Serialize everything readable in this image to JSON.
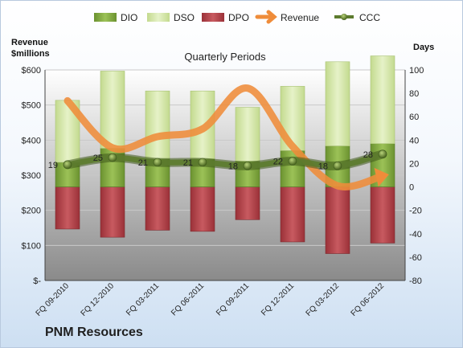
{
  "chart_data": {
    "type": "combo",
    "title": "Quarterly Periods",
    "company": "PNM Resources",
    "left_axis_label_line1": "Revenue",
    "left_axis_label_line2": "$millions",
    "right_axis_label": "Days",
    "left_axis": {
      "min": 0,
      "max": 600,
      "step": 100,
      "ticks": [
        "$-",
        "$100",
        "$200",
        "$300",
        "$400",
        "$500",
        "$600"
      ]
    },
    "right_axis": {
      "min": -80,
      "max": 100,
      "step": 20,
      "ticks": [
        "-80",
        "-60",
        "-40",
        "-20",
        "0",
        "20",
        "40",
        "60",
        "80",
        "100"
      ]
    },
    "categories": [
      "FQ 09-2010",
      "FQ 12-2010",
      "FQ 03-2011",
      "FQ 06-2011",
      "FQ 09-2011",
      "FQ 12-2011",
      "FQ 03-2012",
      "FQ 06-2012"
    ],
    "legend": [
      "DIO",
      "DSO",
      "DPO",
      "Revenue",
      "CCC"
    ],
    "series": [
      {
        "name": "DIO",
        "axis": "right",
        "values": [
          21,
          33,
          24,
          24,
          22,
          31,
          35,
          37
        ]
      },
      {
        "name": "DSO",
        "axis": "right",
        "values": [
          53,
          66,
          58,
          58,
          46,
          55,
          72,
          75
        ]
      },
      {
        "name": "DPO",
        "axis": "right",
        "values": [
          -36,
          -43,
          -37,
          -38,
          -28,
          -47,
          -57,
          -48
        ]
      },
      {
        "name": "Revenue",
        "axis": "left",
        "values": [
          512,
          378,
          410,
          432,
          548,
          382,
          270,
          298
        ]
      },
      {
        "name": "CCC",
        "axis": "right",
        "values": [
          19,
          25,
          21,
          21,
          18,
          22,
          18,
          28
        ]
      }
    ],
    "ccc_labels": [
      "19",
      "25",
      "21",
      "21",
      "18",
      "22",
      "18",
      "28"
    ],
    "colors": {
      "DIO": "#7fa63c",
      "DSO": "#d3e6a8",
      "DPO": "#b3434a",
      "Revenue": "#ef8c3a",
      "CCC": "#5c7b2e",
      "plot_top": "#ffffff",
      "plot_bottom": "#8a8a8a"
    },
    "grid": true,
    "legend_position": "top"
  }
}
